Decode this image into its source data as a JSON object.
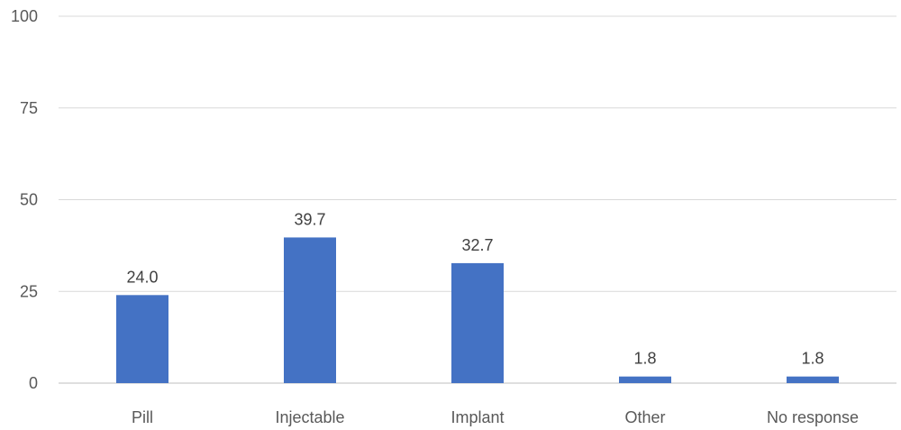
{
  "chart_data": {
    "type": "bar",
    "categories": [
      "Pill",
      "Injectable",
      "Implant",
      "Other",
      "No response"
    ],
    "series": [
      {
        "values": [
          24.0,
          39.7,
          32.7,
          1.8,
          1.8
        ],
        "data_labels": [
          "24.0",
          "39.7",
          "32.7",
          "1.8",
          "1.8"
        ],
        "color": "#4472C4"
      }
    ],
    "ylim": [
      0,
      100
    ],
    "yticks": [
      0,
      25,
      50,
      75,
      100
    ],
    "grid": true,
    "gridline_color": "#D9D9D9",
    "axis_line_color": "#BFBFBF"
  }
}
